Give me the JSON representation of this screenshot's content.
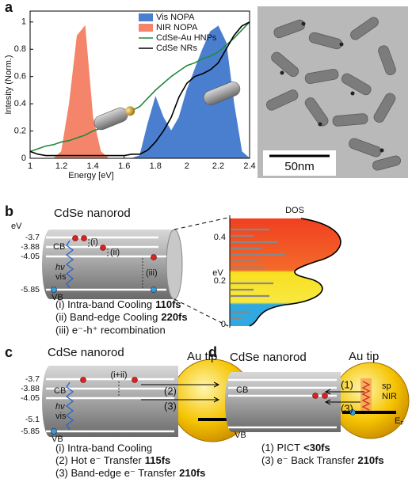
{
  "panel_a": {
    "label": "a",
    "scale_bar": "50nm"
  },
  "chart_data": {
    "type": "line",
    "ylabel": "Intesity (Norm.)",
    "xlabel": "Energy [eV]",
    "x": [
      1.0,
      1.05,
      1.1,
      1.15,
      1.2,
      1.25,
      1.3,
      1.35,
      1.4,
      1.45,
      1.5,
      1.55,
      1.6,
      1.65,
      1.7,
      1.75,
      1.8,
      1.85,
      1.9,
      1.95,
      2.0,
      2.05,
      2.1,
      2.15,
      2.2,
      2.25,
      2.3,
      2.35,
      2.4
    ],
    "series": [
      {
        "name": "Vis NOPA",
        "color": "#4a7fd0",
        "fill": true,
        "values": [
          0,
          0,
          0,
          0,
          0,
          0,
          0,
          0,
          0,
          0,
          0,
          0,
          0,
          0,
          0.02,
          0.25,
          0.45,
          0.3,
          0.2,
          0.3,
          0.5,
          0.65,
          0.8,
          0.93,
          0.97,
          0.85,
          0.4,
          0.05,
          0
        ]
      },
      {
        "name": "NIR NOPA",
        "color": "#f4856a",
        "fill": true,
        "values": [
          0,
          0,
          0,
          0,
          0.05,
          0.4,
          0.9,
          0.97,
          0.3,
          0.05,
          0,
          0,
          0,
          0,
          0,
          0,
          0,
          0,
          0,
          0,
          0,
          0,
          0,
          0,
          0,
          0,
          0,
          0,
          0
        ]
      },
      {
        "name": "CdSe-Au HNPs",
        "color": "#1f8a3c",
        "fill": false,
        "values": [
          0.05,
          0.07,
          0.09,
          0.1,
          0.12,
          0.13,
          0.15,
          0.17,
          0.2,
          0.22,
          0.25,
          0.28,
          0.32,
          0.35,
          0.38,
          0.44,
          0.5,
          0.55,
          0.6,
          0.64,
          0.68,
          0.7,
          0.73,
          0.75,
          0.78,
          0.83,
          0.88,
          0.94,
          1.0
        ]
      },
      {
        "name": "CdSe NRs",
        "color": "#000000",
        "fill": false,
        "values": [
          0.05,
          0.03,
          0.02,
          0.02,
          0.02,
          0.02,
          0.02,
          0.02,
          0.02,
          0.02,
          0.02,
          0.02,
          0.02,
          0.03,
          0.03,
          0.06,
          0.12,
          0.2,
          0.3,
          0.45,
          0.55,
          0.6,
          0.62,
          0.65,
          0.7,
          0.8,
          0.9,
          0.97,
          1.0
        ]
      }
    ],
    "xlim": [
      1,
      2.4
    ],
    "xticks": [
      1,
      1.2,
      1.4,
      1.6,
      1.8,
      2,
      2.2,
      2.4
    ],
    "ylim": [
      0,
      1.08
    ],
    "yticks": [
      0,
      0.2,
      0.4,
      0.6,
      0.8,
      1
    ],
    "legend": "upper right"
  },
  "panel_b": {
    "label": "b",
    "title": "CdSe nanorod",
    "unit": "eV",
    "levels": [
      "-3.7",
      "-3.88",
      "-4.05",
      "-5.85"
    ],
    "bands": [
      "CB",
      "VB"
    ],
    "excitation": [
      "hν",
      "vis"
    ],
    "steps": [
      "(i)",
      "(ii)",
      "(iii)"
    ],
    "captions": [
      {
        "text": "(i) Intra-band Cooling",
        "time": "110fs"
      },
      {
        "text": "(ii) Band-edge Cooling",
        "time": "220fs"
      },
      {
        "text": "(iii) e⁻-h⁺ recombination"
      }
    ],
    "dos": {
      "title": "DOS",
      "axis": "eV",
      "ticks": [
        "0.4",
        "0.2",
        "0"
      ]
    }
  },
  "panel_c": {
    "label": "c",
    "title": "CdSe nanorod",
    "tip": "Au tip",
    "levels": [
      "-3.7",
      "-3.88",
      "-4.05",
      "-5.1",
      "-5.85"
    ],
    "bands": [
      "CB",
      "VB"
    ],
    "excitation": [
      "hν",
      "vis"
    ],
    "steps": [
      "(i+ii)",
      "(2)",
      "(3)"
    ],
    "fermi": {
      "symbol": "E",
      "sub": "F"
    },
    "captions": [
      {
        "text": "(i) Intra-band Cooling"
      },
      {
        "text": "(2) Hot e⁻ Transfer",
        "time": "115fs"
      },
      {
        "text": "(3) Band-edge e⁻ Transfer",
        "time": "210fs"
      }
    ]
  },
  "panel_d": {
    "label": "d",
    "title": "CdSe nanorod",
    "tip": "Au tip",
    "bands": [
      "CB",
      "VB"
    ],
    "steps": [
      "(1)",
      "(3)"
    ],
    "tip_labels": [
      "sp",
      "NIR"
    ],
    "fermi": {
      "symbol": "E",
      "sub": "F"
    },
    "captions": [
      {
        "text": "(1) PICT",
        "time": "<30fs"
      },
      {
        "text": "(3) e⁻ Back Transfer",
        "time": "210fs"
      }
    ]
  }
}
